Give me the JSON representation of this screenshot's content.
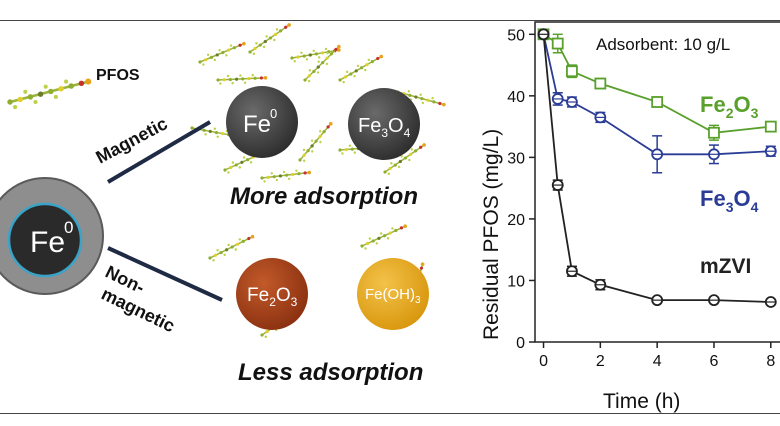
{
  "schematic": {
    "pfos_label": "PFOS",
    "core_label": "Fe",
    "core_sup": "0",
    "magnetic_label": "Magnetic",
    "nonmagnetic_line1": "Non-",
    "nonmagnetic_line2": "magnetic",
    "more_adsorption": "More adsorption",
    "less_adsorption": "Less adsorption",
    "particles": {
      "fe0": {
        "base": "Fe",
        "sup": "0",
        "color": "#3b3b3b"
      },
      "fe3o4": {
        "p1": "Fe",
        "s1": "3",
        "p2": "O",
        "s2": "4",
        "color": "#3b3b3b"
      },
      "fe2o3": {
        "p1": "Fe",
        "s1": "2",
        "p2": "O",
        "s2": "3",
        "color": "#9c3b14"
      },
      "feoh3": {
        "p1": "Fe(OH)",
        "s1": "3",
        "color": "#e0a21a"
      }
    }
  },
  "chart_data": {
    "type": "line",
    "annotation": "Adsorbent: 10 g/L",
    "xlabel": "Time (h)",
    "ylabel": "Residual PFOS (mg/L)",
    "xlim": [
      -0.3,
      8.5
    ],
    "ylim": [
      0,
      52
    ],
    "x_ticks": [
      0,
      2,
      4,
      6,
      8
    ],
    "y_ticks": [
      0,
      10,
      20,
      30,
      40,
      50
    ],
    "series": [
      {
        "name": "Fe2O3",
        "label_base": "Fe",
        "label_s1": "2",
        "label_mid": "O",
        "label_s2": "3",
        "color": "#5aa02c",
        "marker": "square",
        "x": [
          0,
          0.5,
          1,
          2,
          4,
          6,
          8
        ],
        "y": [
          50,
          48.5,
          44,
          42,
          39,
          34,
          35
        ],
        "err": [
          0.5,
          1.5,
          1,
          0.8,
          0.8,
          1.2,
          0.8
        ]
      },
      {
        "name": "Fe3O4",
        "label_base": "Fe",
        "label_s1": "3",
        "label_mid": "O",
        "label_s2": "4",
        "color": "#2a3c96",
        "marker": "circle",
        "x": [
          0,
          0.5,
          1,
          2,
          4,
          6,
          8
        ],
        "y": [
          50,
          39.5,
          39,
          36.5,
          30.5,
          30.5,
          31
        ],
        "err": [
          0.5,
          1,
          0.8,
          0.8,
          3,
          1.5,
          0.8
        ]
      },
      {
        "name": "mZVI",
        "label_base": "mZVI",
        "label_s1": "",
        "label_mid": "",
        "label_s2": "",
        "color": "#222222",
        "marker": "circle",
        "x": [
          0,
          0.5,
          1,
          2,
          4,
          6,
          8
        ],
        "y": [
          50,
          25.5,
          11.5,
          9.3,
          6.8,
          6.8,
          6.5
        ],
        "err": [
          0.5,
          0.8,
          0.8,
          0.8,
          0.5,
          0.5,
          0.5
        ]
      }
    ]
  }
}
